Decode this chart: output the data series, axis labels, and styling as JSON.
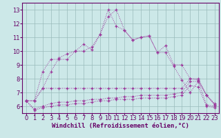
{
  "line1": {
    "x": [
      0,
      1,
      2,
      3,
      4,
      5,
      6,
      7,
      8,
      9,
      10,
      11,
      12,
      13,
      14,
      15,
      16,
      17,
      18,
      19,
      20,
      21,
      22,
      23
    ],
    "y": [
      6.4,
      6.4,
      7.3,
      8.5,
      9.5,
      9.8,
      10.0,
      10.5,
      10.1,
      11.2,
      13.0,
      11.8,
      11.5,
      10.8,
      11.0,
      11.1,
      9.9,
      10.4,
      9.0,
      9.0,
      8.0,
      8.0,
      6.8,
      6.2
    ],
    "color": "#993399"
  },
  "line2": {
    "x": [
      0,
      1,
      2,
      3,
      4,
      5,
      6,
      7,
      8,
      9,
      10,
      11,
      12,
      13,
      14,
      15,
      16,
      17,
      18,
      19,
      20,
      21,
      22,
      23
    ],
    "y": [
      6.4,
      6.4,
      8.5,
      9.4,
      9.4,
      9.4,
      10.0,
      10.0,
      10.3,
      11.2,
      12.5,
      13.0,
      11.5,
      10.8,
      11.0,
      11.1,
      9.9,
      9.9,
      8.9,
      7.9,
      7.0,
      7.8,
      6.8,
      6.1
    ],
    "color": "#993399"
  },
  "line3": {
    "x": [
      0,
      1,
      2,
      3,
      4,
      5,
      6,
      7,
      8,
      9,
      10,
      11,
      12,
      13,
      14,
      15,
      16,
      17,
      18,
      19,
      20,
      21,
      22,
      23
    ],
    "y": [
      6.4,
      6.4,
      7.3,
      7.3,
      7.3,
      7.3,
      7.3,
      7.3,
      7.3,
      7.3,
      7.3,
      7.3,
      7.3,
      7.3,
      7.3,
      7.3,
      7.3,
      7.3,
      7.3,
      7.3,
      8.0,
      7.9,
      6.8,
      6.1
    ],
    "color": "#993399"
  },
  "line4": {
    "x": [
      0,
      1,
      2,
      3,
      4,
      5,
      6,
      7,
      8,
      9,
      10,
      11,
      12,
      13,
      14,
      15,
      16,
      17,
      18,
      19,
      20,
      21,
      22,
      23
    ],
    "y": [
      6.4,
      5.8,
      6.0,
      6.2,
      6.3,
      6.3,
      6.4,
      6.4,
      6.5,
      6.5,
      6.6,
      6.6,
      6.7,
      6.7,
      6.8,
      6.8,
      6.8,
      6.8,
      6.9,
      7.0,
      7.8,
      7.8,
      6.1,
      6.0
    ],
    "color": "#993399"
  },
  "line5": {
    "x": [
      0,
      1,
      2,
      3,
      4,
      5,
      6,
      7,
      8,
      9,
      10,
      11,
      12,
      13,
      14,
      15,
      16,
      17,
      18,
      19,
      20,
      21,
      22,
      23
    ],
    "y": [
      6.4,
      5.7,
      5.9,
      6.0,
      6.1,
      6.1,
      6.2,
      6.2,
      6.3,
      6.4,
      6.4,
      6.5,
      6.5,
      6.5,
      6.6,
      6.6,
      6.6,
      6.6,
      6.7,
      6.8,
      7.5,
      7.4,
      6.0,
      5.9
    ],
    "color": "#993399"
  },
  "xlabel": "Windchill (Refroidissement éolien,°C)",
  "xlim": [
    -0.5,
    23.5
  ],
  "ylim": [
    5.5,
    13.5
  ],
  "yticks": [
    6,
    7,
    8,
    9,
    10,
    11,
    12,
    13
  ],
  "xticks": [
    0,
    1,
    2,
    3,
    4,
    5,
    6,
    7,
    8,
    9,
    10,
    11,
    12,
    13,
    14,
    15,
    16,
    17,
    18,
    19,
    20,
    21,
    22,
    23
  ],
  "bg_color": "#cce8e8",
  "grid_color": "#99bbbb",
  "line_color": "#993399",
  "font_color": "#660066",
  "xlabel_fontsize": 6.5,
  "tick_fontsize": 6.0
}
